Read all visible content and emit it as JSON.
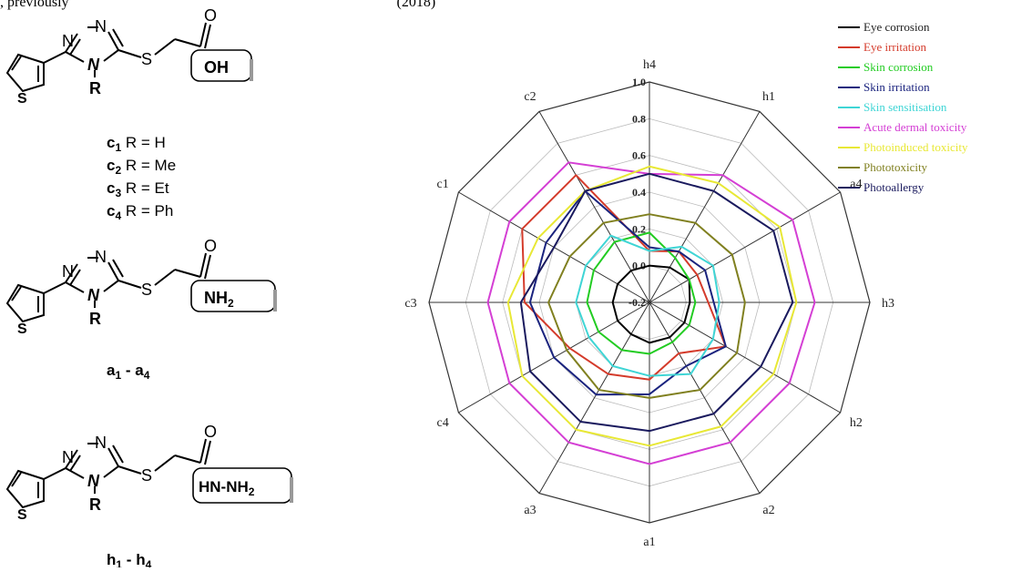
{
  "caption_fragment": ", previously",
  "caption_fragment_end": "(2018)",
  "structures": {
    "c_series": {
      "group_label": "OH",
      "r_label": "R",
      "ring_atoms": {
        "n1": "N",
        "n2": "N",
        "n4": "N",
        "s_link": "S",
        "s_thio": "S",
        "o": "O"
      },
      "members": [
        {
          "sym": "c",
          "sub": "1",
          "rest": " R = H"
        },
        {
          "sym": "c",
          "sub": "2",
          "rest": " R = Me"
        },
        {
          "sym": "c",
          "sub": "3",
          "rest": " R = Et"
        },
        {
          "sym": "c",
          "sub": "4",
          "rest": " R = Ph"
        }
      ]
    },
    "a_series": {
      "group_label": "NH",
      "group_sub": "2",
      "r_label": "R",
      "ring_atoms": {
        "n1": "N",
        "n2": "N",
        "n4": "N",
        "s_link": "S",
        "s_thio": "S",
        "o": "O"
      },
      "range_label": {
        "sym1": "a",
        "sub1": "1",
        "dash": " - ",
        "sym2": "a",
        "sub2": "4"
      }
    },
    "h_series": {
      "group_label": "HN-NH",
      "group_sub": "2",
      "r_label": "R",
      "ring_atoms": {
        "n1": "N",
        "n2": "N",
        "n4": "N",
        "s_link": "S",
        "s_thio": "S",
        "o": "O"
      },
      "range_label": {
        "sym1": "h",
        "sub1": "1",
        "dash": " - ",
        "sym2": "h",
        "sub2": "4"
      }
    }
  },
  "chart_data": {
    "type": "radar",
    "categories": [
      "h4",
      "h1",
      "a4",
      "h3",
      "h2",
      "a2",
      "a1",
      "a3",
      "c4",
      "c3",
      "c1",
      "c2"
    ],
    "rlim": [
      -0.2,
      1.0
    ],
    "ticks": [
      "-0.2",
      "0.0",
      "0.2",
      "0.4",
      "0.6",
      "0.8",
      "1.0"
    ],
    "grid": true,
    "legend_position": "top-right",
    "series": [
      {
        "name": "Eye corrosion",
        "color": "#000000",
        "values": [
          0.0,
          0.02,
          0.05,
          0.02,
          0.02,
          0.02,
          0.02,
          0.0,
          0.0,
          0.0,
          0.0,
          0.0
        ]
      },
      {
        "name": "Eye irritation",
        "color": "#d43b2b",
        "values": [
          0.08,
          0.12,
          0.1,
          0.12,
          0.28,
          0.12,
          0.22,
          0.25,
          0.3,
          0.48,
          0.6,
          0.6
        ]
      },
      {
        "name": "Skin corrosion",
        "color": "#22cc22",
        "values": [
          0.18,
          0.08,
          0.05,
          0.05,
          0.05,
          0.05,
          0.08,
          0.1,
          0.12,
          0.14,
          0.15,
          0.18
        ]
      },
      {
        "name": "Skin irritation",
        "color": "#1a237e",
        "values": [
          0.1,
          0.12,
          0.15,
          0.15,
          0.28,
          0.2,
          0.3,
          0.38,
          0.4,
          0.45,
          0.45,
          0.5
        ]
      },
      {
        "name": "Skin sensitisation",
        "color": "#3fd5d5",
        "values": [
          0.08,
          0.15,
          0.2,
          0.18,
          0.2,
          0.25,
          0.2,
          0.2,
          0.18,
          0.2,
          0.2,
          0.22
        ]
      },
      {
        "name": "Acute dermal toxicity",
        "color": "#d43fd4",
        "values": [
          0.5,
          0.6,
          0.7,
          0.7,
          0.68,
          0.68,
          0.68,
          0.68,
          0.68,
          0.68,
          0.68,
          0.68
        ]
      },
      {
        "name": "Photoinduced toxicity",
        "color": "#e8e835",
        "values": [
          0.54,
          0.55,
          0.62,
          0.6,
          0.58,
          0.58,
          0.58,
          0.6,
          0.6,
          0.57,
          0.5,
          0.5
        ]
      },
      {
        "name": "Phototoxicity",
        "color": "#808020",
        "values": [
          0.28,
          0.3,
          0.32,
          0.32,
          0.35,
          0.35,
          0.32,
          0.35,
          0.32,
          0.35,
          0.3,
          0.3
        ]
      },
      {
        "name": "Photoallergy",
        "color": "#1a1a5e",
        "values": [
          0.5,
          0.5,
          0.58,
          0.58,
          0.5,
          0.5,
          0.5,
          0.55,
          0.55,
          0.5,
          0.4,
          0.5
        ]
      }
    ]
  }
}
